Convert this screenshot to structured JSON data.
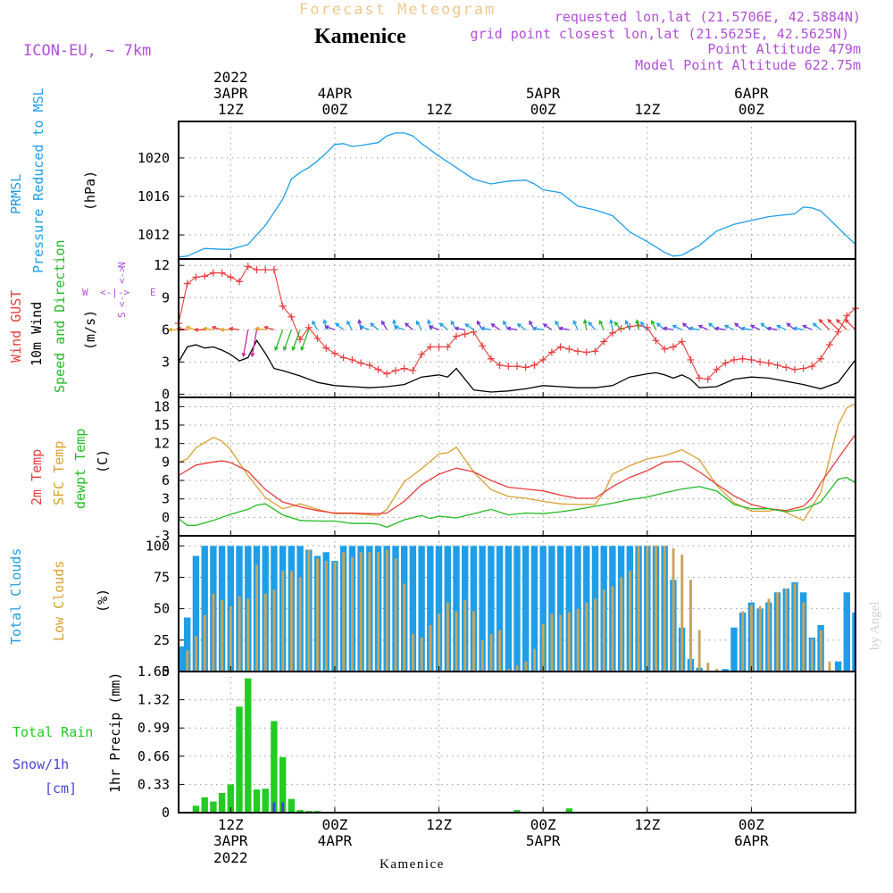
{
  "header": {
    "title": "Forecast Meteogram",
    "place": "Kamenice",
    "model": "ICON-EU, ~ 7km",
    "requested": "requested lon,lat (21.5706E, 42.5884N)",
    "grid": "grid point closest lon,lat (21.5625E, 42.5625N)",
    "altitude": "Point Altitude 479m",
    "model_altitude": "Model Point Altitude 622.75m",
    "footer_place": "Kamenice",
    "credit": "by Angel"
  },
  "time_axis": {
    "top": [
      {
        "line1": "2022",
        "line2": "3APR",
        "line3": "12Z"
      },
      {
        "line1": "",
        "line2": "4APR",
        "line3": "00Z"
      },
      {
        "line1": "",
        "line2": "",
        "line3": "12Z"
      },
      {
        "line1": "",
        "line2": "5APR",
        "line3": "00Z"
      },
      {
        "line1": "",
        "line2": "",
        "line3": "12Z"
      },
      {
        "line1": "",
        "line2": "6APR",
        "line3": "00Z"
      }
    ],
    "bottom": [
      {
        "line1": "12Z",
        "line2": "3APR",
        "line3": "2022"
      },
      {
        "line1": "00Z",
        "line2": "4APR",
        "line3": ""
      },
      {
        "line1": "12Z",
        "line2": "",
        "line3": ""
      },
      {
        "line1": "00Z",
        "line2": "5APR",
        "line3": ""
      },
      {
        "line1": "12Z",
        "line2": "",
        "line3": ""
      },
      {
        "line1": "00Z",
        "line2": "6APR",
        "line3": ""
      }
    ],
    "tick_hours": [
      12,
      24,
      36,
      48,
      60,
      72
    ]
  },
  "labels": {
    "pressure": [
      "PRMSL",
      "Pressure Reduced to MSL",
      "(hPa)"
    ],
    "wind": [
      "Wind GUST",
      "10m Wind",
      "Speed and Direction",
      "(m/s)"
    ],
    "compass": {
      "n": "N",
      "s": "S",
      "w": "W",
      "e": "E"
    },
    "temp": [
      "2m Temp",
      "SFC Temp",
      "dewpt Temp",
      "(C)"
    ],
    "clouds": [
      "Total Clouds",
      "Low Clouds",
      "(%)"
    ],
    "precip": [
      "Total Rain",
      "Snow/1h",
      "[cm]",
      "1hr Precip (mm)"
    ]
  },
  "colors": {
    "pressure": "#1e9ee8",
    "gust": "#e83c3c",
    "wind": "#000000",
    "t2m": "#e83c3c",
    "sfc": "#d9a030",
    "dew": "#22bb22",
    "total_clouds": "#1e9ee8",
    "low_clouds": "#c8a45a",
    "rain": "#22cc22",
    "snow": "#4444dd",
    "purple": "#b050d8",
    "title_orange": "#f0c890"
  },
  "chart_data": [
    {
      "type": "line",
      "title": "PRMSL",
      "x_unit": "hours from 2022-04-03 00Z",
      "xlim": [
        6,
        84
      ],
      "ylim": [
        1009.5,
        1023.8
      ],
      "yticks": [
        1012,
        1016,
        1020
      ],
      "series": [
        {
          "name": "PRMSL",
          "x": [
            6,
            7,
            9,
            11,
            12,
            14,
            16,
            18,
            19,
            20,
            21,
            22,
            23,
            24,
            25,
            26,
            27,
            29,
            30,
            31,
            32,
            33,
            34,
            36,
            38,
            40,
            42,
            44,
            46,
            47,
            48,
            50,
            52,
            54,
            55,
            56,
            58,
            60,
            62,
            63,
            64,
            66,
            68,
            70,
            72,
            74,
            75,
            76,
            77,
            78,
            79,
            80,
            84
          ],
          "y": [
            1009.7,
            1009.8,
            1010.6,
            1010.5,
            1010.5,
            1011,
            1013,
            1015.7,
            1017.8,
            1018.5,
            1019,
            1019.7,
            1020.5,
            1021.4,
            1021.5,
            1021.2,
            1021.3,
            1021.6,
            1022.3,
            1022.6,
            1022.6,
            1022.3,
            1021.5,
            1020.2,
            1019,
            1017.8,
            1017.3,
            1017.6,
            1017.7,
            1017.3,
            1016.7,
            1016.4,
            1015,
            1014.6,
            1014.3,
            1014,
            1012.3,
            1011.3,
            1010.2,
            1009.8,
            1009.9,
            1010.9,
            1012.4,
            1013.1,
            1013.5,
            1013.9,
            1014,
            1014.1,
            1014.2,
            1014.9,
            1014.8,
            1014.5,
            1011
          ]
        }
      ]
    },
    {
      "type": "line",
      "title": "Wind",
      "x_unit": "hours from 2022-04-03 00Z",
      "xlim": [
        6,
        84
      ],
      "ylim": [
        -0.3,
        12.6
      ],
      "yticks": [
        0,
        3,
        6,
        9,
        12
      ],
      "series": [
        {
          "name": "Wind GUST",
          "x": [
            6,
            7,
            8,
            9,
            10,
            11,
            12,
            13,
            14,
            15,
            16,
            17,
            18,
            19,
            20,
            21,
            22,
            23,
            24,
            25,
            26,
            27,
            28,
            29,
            30,
            31,
            32,
            33,
            34,
            35,
            36,
            37,
            38,
            39,
            40,
            41,
            42,
            43,
            44,
            45,
            46,
            47,
            48,
            49,
            50,
            51,
            52,
            53,
            54,
            55,
            56,
            57,
            58,
            59,
            60,
            61,
            62,
            63,
            64,
            65,
            66,
            67,
            68,
            69,
            70,
            71,
            72,
            73,
            74,
            75,
            76,
            77,
            78,
            79,
            80,
            81,
            82,
            83,
            84
          ],
          "y": [
            6.6,
            10.3,
            10.9,
            11,
            11.3,
            11.3,
            10.9,
            10.5,
            11.9,
            11.6,
            11.6,
            11.6,
            8.2,
            7.2,
            5.1,
            6.2,
            5.2,
            4.3,
            3.8,
            3.4,
            3.2,
            2.9,
            2.7,
            2.3,
            1.9,
            2.2,
            2.4,
            2.2,
            3.7,
            4.4,
            4.4,
            4.4,
            5.4,
            5.6,
            5.8,
            4.5,
            3.3,
            2.7,
            2.6,
            2.6,
            2.5,
            2.7,
            3.2,
            3.9,
            4.4,
            4.2,
            4.0,
            3.9,
            4.0,
            4.9,
            5.7,
            6.1,
            6.3,
            6.4,
            6.2,
            5.0,
            4.2,
            4.4,
            4.9,
            3.2,
            1.5,
            1.4,
            2.3,
            2.9,
            3.2,
            3.3,
            3.2,
            3.0,
            2.9,
            2.7,
            2.5,
            2.3,
            2.4,
            2.6,
            3.3,
            4.6,
            5.8,
            7.3,
            8.0
          ]
        },
        {
          "name": "10m Wind",
          "x": [
            6,
            7,
            8,
            9,
            10,
            11,
            12,
            13,
            14,
            15,
            16,
            17,
            18,
            20,
            22,
            24,
            26,
            28,
            30,
            32,
            34,
            36,
            37,
            38,
            40,
            42,
            44,
            46,
            48,
            50,
            52,
            54,
            56,
            58,
            60,
            61,
            62,
            63,
            64,
            65,
            66,
            68,
            70,
            72,
            74,
            76,
            78,
            80,
            82,
            84
          ],
          "y": [
            3,
            4.4,
            4.6,
            4.3,
            4.4,
            4.1,
            3.7,
            3.1,
            3.4,
            5,
            3.8,
            2.4,
            2.2,
            1.7,
            1.1,
            0.8,
            0.7,
            0.6,
            0.7,
            0.9,
            1.6,
            1.8,
            1.6,
            2.4,
            0.4,
            0.2,
            0.3,
            0.5,
            0.8,
            0.7,
            0.6,
            0.6,
            0.8,
            1.6,
            1.9,
            2.0,
            1.8,
            1.5,
            1.8,
            1.4,
            0.6,
            0.7,
            1.4,
            1.6,
            1.5,
            1.2,
            0.9,
            0.5,
            1.1,
            3.2
          ]
        }
      ]
    },
    {
      "type": "line",
      "title": "Temperature",
      "x_unit": "hours from 2022-04-03 00Z",
      "xlim": [
        6,
        84
      ],
      "ylim": [
        -3,
        19.5
      ],
      "yticks": [
        -3,
        0,
        3,
        6,
        9,
        12,
        15,
        18
      ],
      "series": [
        {
          "name": "2m Temp",
          "x": [
            6,
            8,
            10,
            11,
            12,
            14,
            16,
            18,
            20,
            22,
            24,
            26,
            28,
            29,
            30,
            32,
            34,
            36,
            38,
            40,
            42,
            44,
            46,
            48,
            50,
            52,
            54,
            56,
            58,
            60,
            62,
            64,
            66,
            68,
            70,
            72,
            74,
            76,
            78,
            79,
            80,
            82,
            84
          ],
          "y": [
            6.8,
            8.5,
            9,
            9.2,
            8.9,
            7.5,
            4.5,
            2.5,
            1.7,
            1.1,
            0.7,
            0.7,
            0.6,
            0.6,
            0.7,
            2.6,
            5.3,
            7,
            8,
            7.4,
            6,
            4.9,
            4.6,
            4.3,
            3.6,
            3.1,
            3.1,
            5,
            6.5,
            7.6,
            9,
            9.1,
            7.4,
            5.4,
            3.5,
            2.1,
            1.4,
            1.1,
            1.8,
            3.2,
            5.6,
            9.6,
            13.5
          ]
        },
        {
          "name": "SFC Temp",
          "x": [
            6,
            7,
            8,
            10,
            11,
            12,
            14,
            16,
            18,
            20,
            22,
            24,
            26,
            28,
            29,
            30,
            32,
            34,
            36,
            37,
            38,
            40,
            42,
            44,
            46,
            48,
            50,
            52,
            54,
            55,
            56,
            58,
            60,
            62,
            64,
            66,
            68,
            70,
            72,
            74,
            75,
            76,
            78,
            80,
            82,
            83,
            84
          ],
          "y": [
            8.9,
            9.5,
            11.3,
            13,
            12.4,
            11,
            6.8,
            3.2,
            1.4,
            2.2,
            1.3,
            0.6,
            0.6,
            0.4,
            0.3,
            1.3,
            5.8,
            7.9,
            10.3,
            10.5,
            11.4,
            7.4,
            4.5,
            3.4,
            3.1,
            2.6,
            2.2,
            2.1,
            2.1,
            4,
            7,
            8.4,
            9.5,
            10,
            11,
            9.4,
            5.2,
            2.4,
            1,
            1,
            1.3,
            0.8,
            -0.5,
            4,
            15,
            17.8,
            18.5
          ]
        },
        {
          "name": "dewpt Temp",
          "x": [
            6,
            7,
            8,
            10,
            12,
            14,
            15,
            16,
            17,
            18,
            20,
            22,
            24,
            26,
            28,
            29,
            30,
            32,
            34,
            35,
            36,
            38,
            40,
            42,
            44,
            46,
            48,
            50,
            52,
            54,
            56,
            58,
            60,
            62,
            64,
            66,
            68,
            70,
            72,
            74,
            76,
            78,
            80,
            82,
            83,
            84
          ],
          "y": [
            -0.2,
            -1.3,
            -1.3,
            -0.5,
            0.5,
            1.3,
            2,
            2.2,
            1.3,
            0.4,
            -0.5,
            -0.6,
            -0.6,
            -1,
            -1,
            -1.1,
            -1.6,
            -0.4,
            0.3,
            -0.2,
            0.2,
            -0.1,
            0.6,
            1.3,
            0.4,
            0.7,
            0.6,
            0.9,
            1.3,
            1.8,
            2.3,
            2.9,
            3.3,
            4,
            4.6,
            5,
            4.3,
            2.1,
            1.4,
            1.4,
            0.9,
            1.3,
            2.5,
            6.2,
            6.5,
            5.6
          ]
        }
      ]
    },
    {
      "type": "bar",
      "title": "Clouds",
      "x_unit": "hours from 2022-04-03 00Z",
      "xlim": [
        6,
        84
      ],
      "ylim": [
        0,
        108
      ],
      "yticks": [
        0,
        25,
        50,
        75,
        100
      ],
      "x": [
        6,
        7,
        8,
        9,
        10,
        11,
        12,
        13,
        14,
        15,
        16,
        17,
        18,
        19,
        20,
        21,
        22,
        23,
        24,
        25,
        26,
        27,
        28,
        29,
        30,
        31,
        32,
        33,
        34,
        35,
        36,
        37,
        38,
        39,
        40,
        41,
        42,
        43,
        44,
        45,
        46,
        47,
        48,
        49,
        50,
        51,
        52,
        53,
        54,
        55,
        56,
        57,
        58,
        59,
        60,
        61,
        62,
        63,
        64,
        65,
        66,
        67,
        68,
        69,
        70,
        71,
        72,
        73,
        74,
        75,
        76,
        77,
        78,
        79,
        80,
        81,
        82,
        83,
        84
      ],
      "series": [
        {
          "name": "Total Clouds",
          "values": [
            20,
            43,
            92,
            100,
            100,
            100,
            100,
            100,
            100,
            100,
            100,
            100,
            100,
            100,
            100,
            97,
            92,
            95,
            88,
            100,
            100,
            100,
            100,
            100,
            100,
            100,
            100,
            100,
            100,
            100,
            100,
            100,
            100,
            100,
            100,
            100,
            100,
            100,
            100,
            100,
            100,
            100,
            100,
            100,
            100,
            100,
            100,
            100,
            100,
            100,
            100,
            100,
            100,
            100,
            100,
            100,
            100,
            73,
            35,
            10,
            3,
            0,
            0,
            2,
            35,
            47,
            55,
            50,
            55,
            63,
            66,
            71,
            63,
            27,
            37,
            0,
            8,
            63,
            47
          ]
        },
        {
          "name": "Low Clouds",
          "values": [
            0,
            17,
            28,
            45,
            62,
            57,
            52,
            60,
            58,
            85,
            62,
            65,
            80,
            80,
            75,
            97,
            90,
            88,
            87,
            95,
            91,
            95,
            95,
            95,
            97,
            90,
            70,
            30,
            27,
            37,
            46,
            55,
            48,
            57,
            48,
            25,
            30,
            33,
            2,
            5,
            8,
            18,
            38,
            46,
            45,
            47,
            50,
            55,
            58,
            65,
            68,
            75,
            80,
            100,
            100,
            100,
            100,
            98,
            93,
            73,
            33,
            7,
            2,
            0,
            0,
            48,
            53,
            52,
            58,
            63,
            66,
            70,
            55,
            26,
            33,
            8,
            0,
            0,
            0
          ]
        }
      ]
    },
    {
      "type": "bar",
      "title": "Precipitation",
      "x_unit": "hours from 2022-04-03 00Z",
      "xlim": [
        6,
        84
      ],
      "ylim": [
        0,
        1.65
      ],
      "yticks": [
        0,
        0.33,
        0.66,
        0.99,
        1.32,
        1.65
      ],
      "x": [
        8,
        9,
        10,
        11,
        12,
        13,
        14,
        15,
        16,
        17,
        18,
        19,
        20,
        21,
        22,
        45,
        51
      ],
      "series": [
        {
          "name": "Total Rain",
          "values": [
            0.08,
            0.18,
            0.13,
            0.23,
            0.33,
            1.24,
            1.57,
            0.27,
            0.28,
            1.07,
            0.65,
            0.16,
            0.03,
            0.02,
            0.02,
            0.03,
            0.05
          ]
        },
        {
          "name": "Snow/1h",
          "values": [
            0,
            0,
            0,
            0,
            0,
            0,
            0,
            0,
            0,
            0.12,
            0.12,
            0,
            0,
            0,
            0,
            0,
            0
          ]
        }
      ]
    }
  ]
}
